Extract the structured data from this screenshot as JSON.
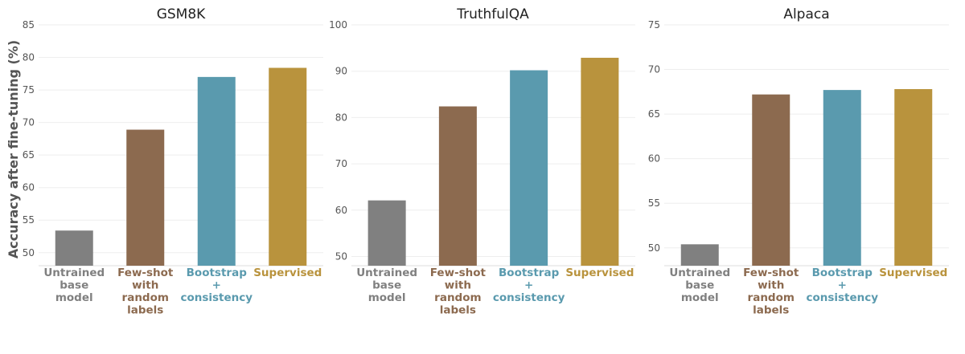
{
  "figure": {
    "ylabel": "Accuracy after fine-tuning (%)"
  },
  "chart_data": [
    {
      "type": "bar",
      "title": "GSM8K",
      "categories": [
        "Untrained\nbase\nmodel",
        "Few-shot\nwith\nrandom\nlabels",
        "Bootstrap\n+\nconsistency",
        "Supervised"
      ],
      "values": [
        53.4,
        68.9,
        77.0,
        78.4
      ],
      "colors": [
        "#808080",
        "#8c6a4f",
        "#5a9aae",
        "#b9933d"
      ],
      "ylim": [
        48,
        85
      ],
      "yticks": [
        50,
        55,
        60,
        65,
        70,
        75,
        80,
        85
      ],
      "xlabel": "",
      "ylabel": "Accuracy after fine-tuning (%)",
      "grid": true
    },
    {
      "type": "bar",
      "title": "TruthfulQA",
      "categories": [
        "Untrained\nbase\nmodel",
        "Few-shot\nwith\nrandom\nlabels",
        "Bootstrap\n+\nconsistency",
        "Supervised"
      ],
      "values": [
        62.1,
        82.4,
        90.2,
        92.9
      ],
      "colors": [
        "#808080",
        "#8c6a4f",
        "#5a9aae",
        "#b9933d"
      ],
      "ylim": [
        48,
        100
      ],
      "yticks": [
        50,
        60,
        70,
        80,
        90,
        100
      ],
      "xlabel": "",
      "ylabel": "",
      "grid": true
    },
    {
      "type": "bar",
      "title": "Alpaca",
      "categories": [
        "Untrained\nbase\nmodel",
        "Few-shot\nwith\nrandom\nlabels",
        "Bootstrap\n+\nconsistency",
        "Supervised"
      ],
      "values": [
        50.4,
        67.2,
        67.7,
        67.8
      ],
      "colors": [
        "#808080",
        "#8c6a4f",
        "#5a9aae",
        "#b9933d"
      ],
      "ylim": [
        48,
        75
      ],
      "yticks": [
        50,
        55,
        60,
        65,
        70,
        75
      ],
      "xlabel": "",
      "ylabel": "",
      "grid": true
    }
  ]
}
